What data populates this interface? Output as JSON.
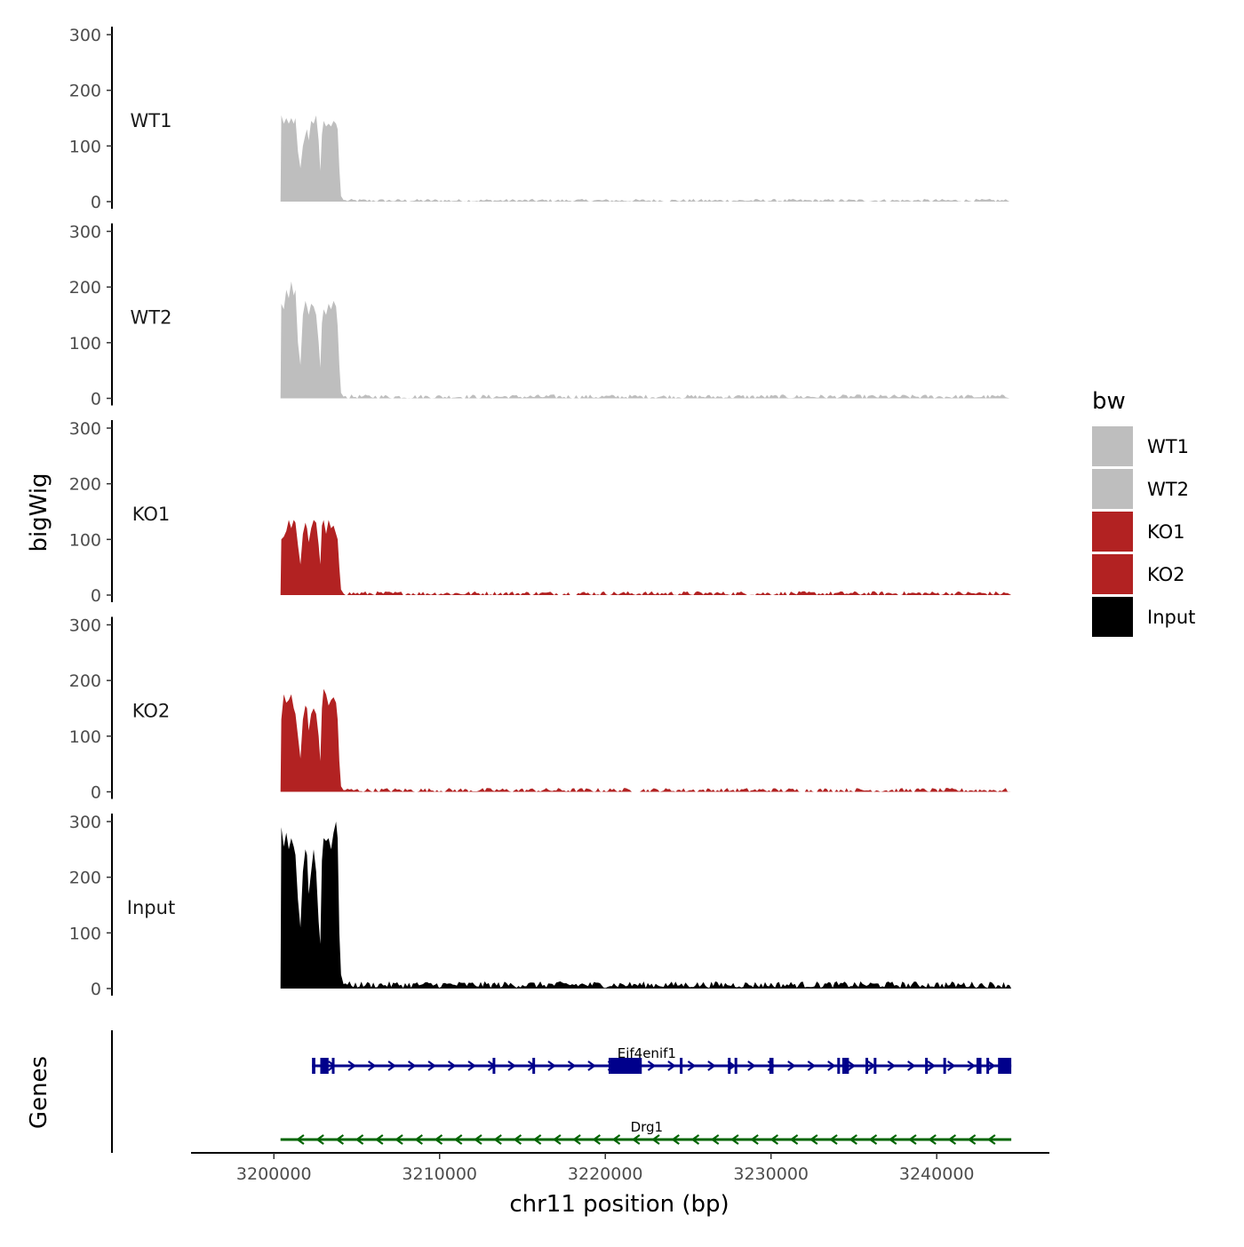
{
  "chart_data": {
    "type": "area",
    "y_axis_title": "bigWig",
    "genes_axis_title": "Genes",
    "x_axis_title": "chr11 position (bp)",
    "x_range": [
      3195000,
      3246800
    ],
    "x_ticks": [
      3200000,
      3210000,
      3220000,
      3230000,
      3240000
    ],
    "x_tick_labels": [
      "3200000",
      "3210000",
      "3220000",
      "3230000",
      "3240000"
    ],
    "y_range": [
      0,
      300
    ],
    "y_ticks": [
      0,
      100,
      200,
      300
    ],
    "y_tick_labels": [
      "0",
      "100",
      "200",
      "300"
    ],
    "data_start": 3200400,
    "data_end": 3244500,
    "tracks": [
      {
        "name": "WT1",
        "color": "#bebebe",
        "peak_profile": [
          [
            3200400,
            0
          ],
          [
            3200450,
            155
          ],
          [
            3200600,
            140
          ],
          [
            3200750,
            150
          ],
          [
            3200900,
            140
          ],
          [
            3201050,
            150
          ],
          [
            3201200,
            140
          ],
          [
            3201300,
            150
          ],
          [
            3201450,
            90
          ],
          [
            3201600,
            60
          ],
          [
            3201750,
            100
          ],
          [
            3201900,
            120
          ],
          [
            3202000,
            130
          ],
          [
            3202100,
            110
          ],
          [
            3202250,
            145
          ],
          [
            3202400,
            140
          ],
          [
            3202550,
            155
          ],
          [
            3202700,
            110
          ],
          [
            3202800,
            55
          ],
          [
            3202900,
            120
          ],
          [
            3203000,
            145
          ],
          [
            3203150,
            135
          ],
          [
            3203300,
            140
          ],
          [
            3203450,
            135
          ],
          [
            3203600,
            145
          ],
          [
            3203750,
            140
          ],
          [
            3203850,
            130
          ],
          [
            3203950,
            60
          ],
          [
            3204050,
            10
          ],
          [
            3204200,
            3
          ]
        ],
        "background_level": 2,
        "background_noise": 3
      },
      {
        "name": "WT2",
        "color": "#bebebe",
        "peak_profile": [
          [
            3200400,
            0
          ],
          [
            3200450,
            170
          ],
          [
            3200600,
            160
          ],
          [
            3200750,
            195
          ],
          [
            3200900,
            180
          ],
          [
            3201050,
            210
          ],
          [
            3201200,
            185
          ],
          [
            3201300,
            195
          ],
          [
            3201450,
            100
          ],
          [
            3201600,
            60
          ],
          [
            3201750,
            150
          ],
          [
            3201900,
            175
          ],
          [
            3202000,
            165
          ],
          [
            3202100,
            150
          ],
          [
            3202250,
            170
          ],
          [
            3202400,
            165
          ],
          [
            3202550,
            150
          ],
          [
            3202700,
            100
          ],
          [
            3202800,
            55
          ],
          [
            3202900,
            135
          ],
          [
            3203000,
            160
          ],
          [
            3203150,
            150
          ],
          [
            3203300,
            170
          ],
          [
            3203450,
            160
          ],
          [
            3203600,
            175
          ],
          [
            3203750,
            165
          ],
          [
            3203850,
            130
          ],
          [
            3203950,
            60
          ],
          [
            3204050,
            10
          ],
          [
            3204200,
            3
          ]
        ],
        "background_level": 3,
        "background_noise": 4
      },
      {
        "name": "KO1",
        "color": "#b22222",
        "peak_profile": [
          [
            3200400,
            0
          ],
          [
            3200450,
            100
          ],
          [
            3200600,
            105
          ],
          [
            3200750,
            115
          ],
          [
            3200900,
            135
          ],
          [
            3201050,
            120
          ],
          [
            3201200,
            135
          ],
          [
            3201300,
            130
          ],
          [
            3201450,
            90
          ],
          [
            3201600,
            55
          ],
          [
            3201750,
            110
          ],
          [
            3201900,
            130
          ],
          [
            3202000,
            120
          ],
          [
            3202100,
            95
          ],
          [
            3202250,
            120
          ],
          [
            3202400,
            135
          ],
          [
            3202550,
            130
          ],
          [
            3202700,
            90
          ],
          [
            3202800,
            55
          ],
          [
            3202900,
            125
          ],
          [
            3203000,
            135
          ],
          [
            3203150,
            110
          ],
          [
            3203300,
            135
          ],
          [
            3203450,
            120
          ],
          [
            3203600,
            125
          ],
          [
            3203750,
            110
          ],
          [
            3203850,
            100
          ],
          [
            3203950,
            50
          ],
          [
            3204050,
            10
          ],
          [
            3204200,
            3
          ]
        ],
        "background_level": 3,
        "background_noise": 4
      },
      {
        "name": "KO2",
        "color": "#b22222",
        "peak_profile": [
          [
            3200400,
            0
          ],
          [
            3200450,
            130
          ],
          [
            3200600,
            175
          ],
          [
            3200750,
            160
          ],
          [
            3200900,
            165
          ],
          [
            3201050,
            175
          ],
          [
            3201200,
            150
          ],
          [
            3201300,
            140
          ],
          [
            3201450,
            100
          ],
          [
            3201600,
            60
          ],
          [
            3201750,
            130
          ],
          [
            3201900,
            155
          ],
          [
            3202000,
            150
          ],
          [
            3202100,
            110
          ],
          [
            3202250,
            140
          ],
          [
            3202400,
            150
          ],
          [
            3202550,
            140
          ],
          [
            3202700,
            100
          ],
          [
            3202800,
            55
          ],
          [
            3202900,
            150
          ],
          [
            3203000,
            185
          ],
          [
            3203150,
            175
          ],
          [
            3203300,
            155
          ],
          [
            3203450,
            165
          ],
          [
            3203600,
            170
          ],
          [
            3203750,
            160
          ],
          [
            3203850,
            130
          ],
          [
            3203950,
            55
          ],
          [
            3204050,
            10
          ],
          [
            3204200,
            3
          ]
        ],
        "background_level": 3,
        "background_noise": 4
      },
      {
        "name": "Input",
        "color": "#000000",
        "peak_profile": [
          [
            3200400,
            0
          ],
          [
            3200450,
            290
          ],
          [
            3200600,
            255
          ],
          [
            3200750,
            280
          ],
          [
            3200900,
            250
          ],
          [
            3201050,
            270
          ],
          [
            3201200,
            255
          ],
          [
            3201300,
            240
          ],
          [
            3201450,
            160
          ],
          [
            3201600,
            110
          ],
          [
            3201750,
            210
          ],
          [
            3201900,
            250
          ],
          [
            3202000,
            240
          ],
          [
            3202100,
            170
          ],
          [
            3202250,
            210
          ],
          [
            3202400,
            250
          ],
          [
            3202550,
            210
          ],
          [
            3202700,
            120
          ],
          [
            3202800,
            80
          ],
          [
            3202900,
            230
          ],
          [
            3203000,
            270
          ],
          [
            3203150,
            265
          ],
          [
            3203300,
            270
          ],
          [
            3203450,
            250
          ],
          [
            3203600,
            280
          ],
          [
            3203750,
            300
          ],
          [
            3203850,
            270
          ],
          [
            3203950,
            100
          ],
          [
            3204050,
            25
          ],
          [
            3204200,
            8
          ]
        ],
        "background_level": 7,
        "background_noise": 6
      }
    ],
    "legend": {
      "title": "bw",
      "position": "right",
      "entries": [
        {
          "label": "WT1",
          "color": "#bebebe"
        },
        {
          "label": "WT2",
          "color": "#bebebe"
        },
        {
          "label": "KO1",
          "color": "#b22222"
        },
        {
          "label": "KO2",
          "color": "#b22222"
        },
        {
          "label": "Input",
          "color": "#000000"
        }
      ]
    },
    "genes": [
      {
        "name": "Eif4enif1",
        "strand": "+",
        "color": "#00008b",
        "start": 3202300,
        "end": 3244500,
        "exons": [
          [
            3202300,
            3202500
          ],
          [
            3202800,
            3203300
          ],
          [
            3203500,
            3203600
          ],
          [
            3213200,
            3213350
          ],
          [
            3215600,
            3215750
          ],
          [
            3220200,
            3222200
          ],
          [
            3224500,
            3224650
          ],
          [
            3227400,
            3227550
          ],
          [
            3227800,
            3227950
          ],
          [
            3229900,
            3230150
          ],
          [
            3234000,
            3234100
          ],
          [
            3234300,
            3234700
          ],
          [
            3235700,
            3235850
          ],
          [
            3236200,
            3236350
          ],
          [
            3239300,
            3239400
          ],
          [
            3240400,
            3240550
          ],
          [
            3242400,
            3242700
          ],
          [
            3243000,
            3243150
          ],
          [
            3243700,
            3244500
          ]
        ]
      },
      {
        "name": "Drg1",
        "strand": "-",
        "color": "#006400",
        "start": 3200400,
        "end": 3244500,
        "exons": []
      }
    ]
  }
}
